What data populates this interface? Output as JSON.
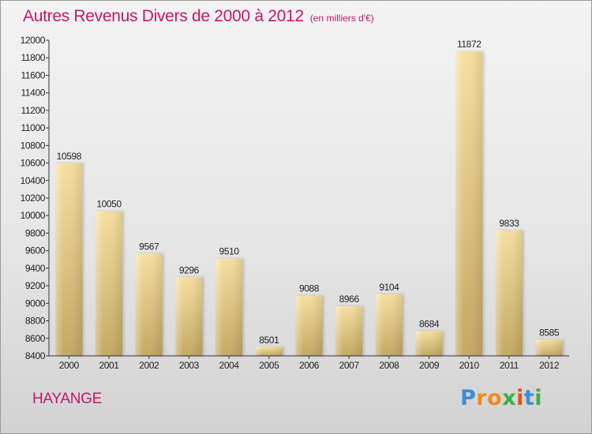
{
  "header": {
    "title": "Autres Revenus Divers de 2000 à 2012",
    "subtitle": "(en milliers d'€)"
  },
  "town": "HAYANGE",
  "logo": {
    "text": "Proxiti"
  },
  "colors": {
    "title": "#c31a67",
    "bar_light": "#f6dfa0",
    "bar_dark": "#c4a862"
  },
  "chart_data": {
    "type": "bar",
    "title": "Autres Revenus Divers de 2000 à 2012",
    "subtitle": "(en milliers d'€)",
    "xlabel": "",
    "ylabel": "",
    "categories": [
      "2000",
      "2001",
      "2002",
      "2003",
      "2004",
      "2005",
      "2006",
      "2007",
      "2008",
      "2009",
      "2010",
      "2011",
      "2012"
    ],
    "values": [
      10598,
      10050,
      9567,
      9296,
      9510,
      8501,
      9088,
      8966,
      9104,
      8684,
      11872,
      9833,
      8585
    ],
    "value_labels": [
      "10598",
      "10050",
      "9567",
      "9296",
      "9510",
      "8501",
      "9088",
      "8966",
      "9104",
      "8684",
      "11872",
      "9833",
      "8585"
    ],
    "ylim": [
      8400,
      12000
    ],
    "yticks": [
      8400,
      8600,
      8800,
      9000,
      9200,
      9400,
      9600,
      9800,
      10000,
      10200,
      10400,
      10600,
      10800,
      11000,
      11200,
      11400,
      11600,
      11800,
      12000
    ],
    "grid": false
  }
}
